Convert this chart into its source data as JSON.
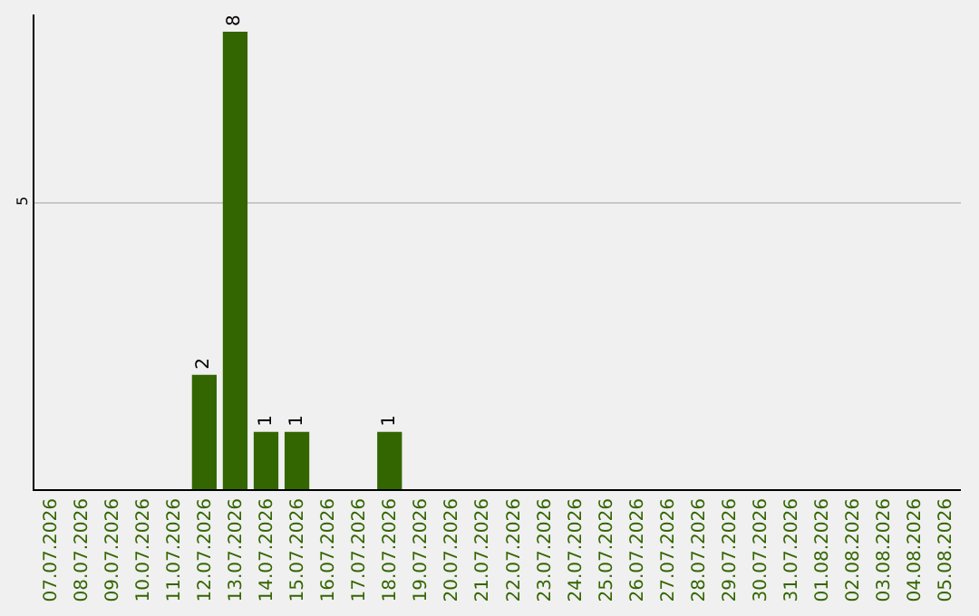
{
  "chart_data": {
    "type": "bar",
    "categories": [
      "07.07.2026",
      "08.07.2026",
      "09.07.2026",
      "10.07.2026",
      "11.07.2026",
      "12.07.2026",
      "13.07.2026",
      "14.07.2026",
      "15.07.2026",
      "16.07.2026",
      "17.07.2026",
      "18.07.2026",
      "19.07.2026",
      "20.07.2026",
      "21.07.2026",
      "22.07.2026",
      "23.07.2026",
      "24.07.2026",
      "25.07.2026",
      "26.07.2026",
      "27.07.2026",
      "28.07.2026",
      "29.07.2026",
      "30.07.2026",
      "31.07.2026",
      "01.08.2026",
      "02.08.2026",
      "03.08.2026",
      "04.08.2026",
      "05.08.2026"
    ],
    "values": [
      0,
      0,
      0,
      0,
      0,
      2,
      8,
      1,
      1,
      0,
      0,
      1,
      0,
      0,
      0,
      0,
      0,
      0,
      0,
      0,
      0,
      0,
      0,
      0,
      0,
      0,
      0,
      0,
      0,
      0
    ],
    "value_labels": [
      null,
      null,
      null,
      null,
      null,
      "2",
      "8",
      "1",
      "1",
      null,
      null,
      "1",
      null,
      null,
      null,
      null,
      null,
      null,
      null,
      null,
      null,
      null,
      null,
      null,
      null,
      null,
      null,
      null,
      null,
      null
    ],
    "color": "#336600",
    "ylim": [
      0,
      8.3
    ],
    "yticks": [
      5
    ],
    "grid": "y"
  }
}
